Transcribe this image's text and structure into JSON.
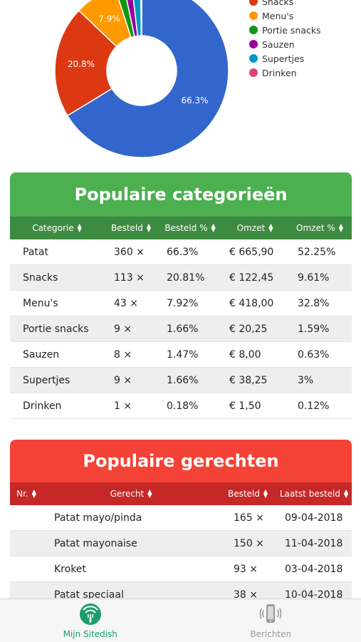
{
  "chart_data": {
    "type": "pie",
    "donut": true,
    "slices": [
      {
        "label": "Patat",
        "value": 66.3,
        "color": "#3366cc",
        "display": "66.3%"
      },
      {
        "label": "Snacks",
        "value": 20.8,
        "color": "#dc3912",
        "display": "20.8%"
      },
      {
        "label": "Menu's",
        "value": 7.9,
        "color": "#ff9900",
        "display": "7.9%"
      },
      {
        "label": "Portie snacks",
        "value": 1.66,
        "color": "#109618",
        "display": ""
      },
      {
        "label": "Sauzen",
        "value": 1.47,
        "color": "#990099",
        "display": ""
      },
      {
        "label": "Supertjes",
        "value": 1.66,
        "color": "#0099c6",
        "display": ""
      },
      {
        "label": "Drinken",
        "value": 0.18,
        "color": "#dd4477",
        "display": ""
      }
    ],
    "legend": [
      "Snacks",
      "Menu's",
      "Portie snacks",
      "Sauzen",
      "Supertjes",
      "Drinken"
    ],
    "legend_colors": [
      "#dc3912",
      "#ff9900",
      "#109618",
      "#990099",
      "#0099c6",
      "#dd4477"
    ],
    "legend_position": "right"
  },
  "categories_table": {
    "title": "Populaire categorieën",
    "header_color": "#4caf50",
    "columns": [
      "Categorie",
      "Besteld",
      "Besteld %",
      "Omzet",
      "Omzet %"
    ],
    "rows": [
      [
        "Patat",
        "360 ×",
        "66.3%",
        "€ 665,90",
        "52.25%"
      ],
      [
        "Snacks",
        "113 ×",
        "20.81%",
        "€ 122,45",
        "9.61%"
      ],
      [
        "Menu's",
        "43 ×",
        "7.92%",
        "€ 418,00",
        "32.8%"
      ],
      [
        "Portie snacks",
        "9 ×",
        "1.66%",
        "€ 20,25",
        "1.59%"
      ],
      [
        "Sauzen",
        "8 ×",
        "1.47%",
        "€ 8,00",
        "0.63%"
      ],
      [
        "Supertjes",
        "9 ×",
        "1.66%",
        "€ 38,25",
        "3%"
      ],
      [
        "Drinken",
        "1 ×",
        "0.18%",
        "€ 1,50",
        "0.12%"
      ]
    ]
  },
  "dishes_table": {
    "title": "Populaire gerechten",
    "header_color": "#f44336",
    "columns": [
      "Nr.",
      "Gerecht",
      "Besteld",
      "Laatst besteld"
    ],
    "rows": [
      [
        "",
        "Patat mayo/pinda",
        "165 ×",
        "09-04-2018"
      ],
      [
        "",
        "Patat mayonaise",
        "150 ×",
        "11-04-2018"
      ],
      [
        "",
        "Kroket",
        "93 ×",
        "03-04-2018"
      ],
      [
        "",
        "Patat speciaal",
        "38 ×",
        "10-04-2018"
      ]
    ]
  },
  "tabbar": {
    "items": [
      {
        "label": "Mijn Sitedish",
        "icon": "sitedish-icon",
        "active": true
      },
      {
        "label": "Berichten",
        "icon": "phone-vibrate-icon",
        "active": false
      }
    ],
    "active_color": "#1b9e6d",
    "inactive_color": "#9a9a9a"
  }
}
